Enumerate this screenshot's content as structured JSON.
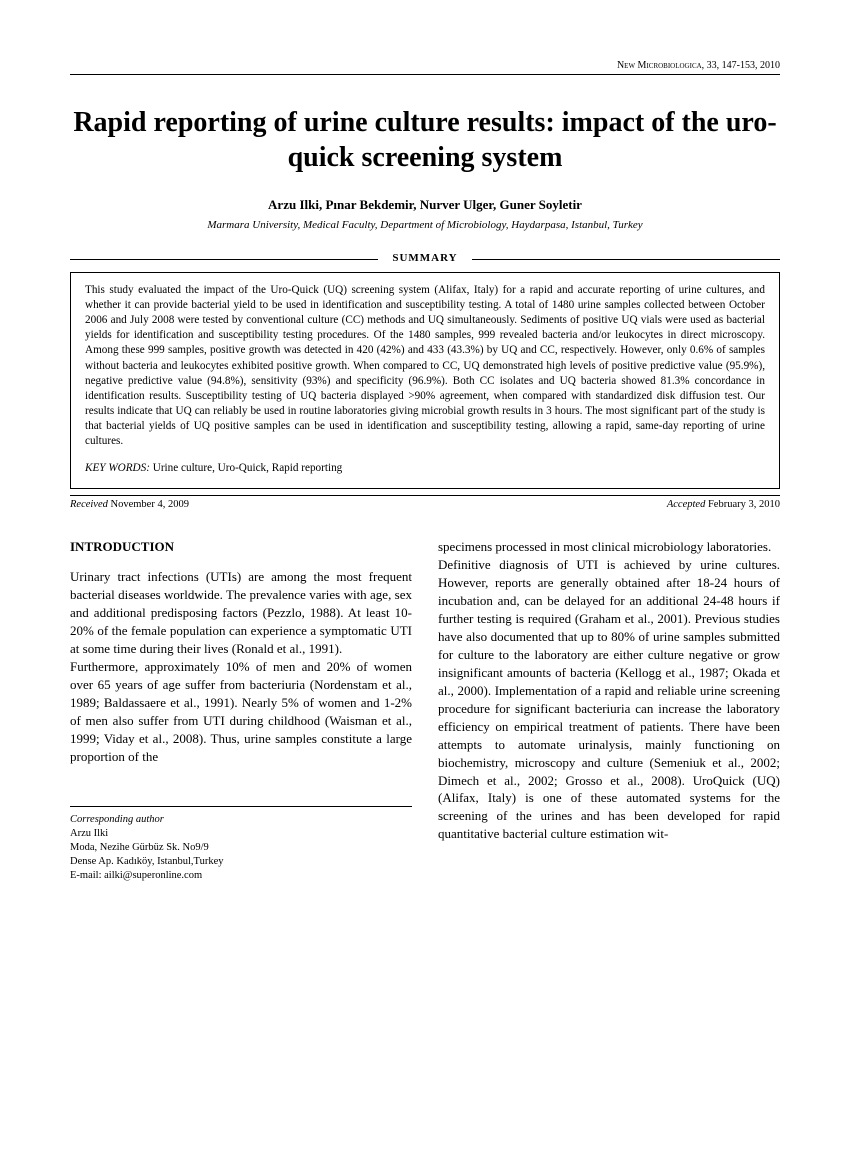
{
  "journal_header": "New Microbiologica, 33, 147-153, 2010",
  "title": "Rapid reporting of urine culture results: impact of the uro-quick screening system",
  "authors": "Arzu Ilki, Pınar Bekdemir, Nurver Ulger, Guner Soyletir",
  "affiliation": "Marmara University, Medical Faculty, Department of Microbiology, Haydarpasa, Istanbul, Turkey",
  "summary_label": "SUMMARY",
  "summary_text": "This study evaluated the impact of the Uro-Quick (UQ) screening system (Alifax, Italy) for a rapid and accurate reporting of urine cultures, and whether it can provide bacterial yield to be used in identification and susceptibility testing. A total of 1480 urine samples collected between October 2006 and July 2008 were tested by conventional culture (CC) methods and UQ simultaneously. Sediments of positive UQ vials were used as bacterial yields for identification and susceptibility testing procedures. Of the 1480 samples, 999 revealed bacteria and/or leukocytes in direct microscopy. Among these 999 samples, positive growth was detected in 420 (42%) and 433 (43.3%) by UQ and CC, respectively. However, only 0.6% of samples without bacteria and leukocytes exhibited positive growth. When compared to CC, UQ demonstrated high levels of positive predictive value (95.9%), negative predictive value (94.8%), sensitivity (93%) and specificity (96.9%). Both CC isolates and UQ bacteria showed 81.3% concordance in identification results. Susceptibility testing of UQ bacteria displayed >90% agreement, when compared with standardized disk diffusion test. Our results indicate that UQ can reliably be used in routine laboratories giving microbial growth results in 3 hours. The most significant part of the study is that bacterial yields of UQ positive samples can be used in identification and susceptibility testing, allowing a rapid, same-day reporting of urine cultures.",
  "keywords_label": "KEY WORDS:",
  "keywords_value": " Urine culture, Uro-Quick, Rapid reporting",
  "received_label": "Received",
  "received_value": " November 4, 2009",
  "accepted_label": "Accepted",
  "accepted_value": " February 3, 2010",
  "introduction_heading": "INTRODUCTION",
  "col1_p1": "Urinary tract infections (UTIs) are among the most frequent bacterial diseases worldwide. The prevalence varies with age, sex and additional predisposing factors (Pezzlo, 1988). At least 10-20% of the female population can experience a symptomatic UTI at some time during their lives (Ronald et al., 1991).",
  "col1_p2": "Furthermore, approximately 10% of men and 20% of women over 65 years of age suffer from bacteriuria (Nordenstam et al., 1989; Baldassaere et al., 1991). Nearly 5% of women and 1-2% of men also suffer from UTI during childhood (Waisman et al., 1999; Viday et al., 2008). Thus, urine samples constitute a large proportion of the",
  "col2_p1": "specimens processed in most clinical microbiology laboratories.",
  "col2_p2": "Definitive diagnosis of UTI is achieved by urine cultures. However, reports are generally obtained after 18-24 hours of incubation and, can be delayed for an additional 24-48 hours if further testing is required (Graham et al., 2001). Previous studies have also documented that up to 80% of urine samples submitted for culture to the laboratory are either culture negative or grow insignificant amounts of bacteria (Kellogg et al., 1987; Okada et al., 2000). Implementation of a rapid and reliable urine screening procedure for significant bacteriuria can increase the laboratory efficiency on empirical treatment of patients. There have been attempts to automate urinalysis, mainly functioning on biochemistry, microscopy and culture (Semeniuk et al., 2002; Dimech et al., 2002; Grosso et al., 2008). UroQuick (UQ) (Alifax, Italy) is one of these automated systems for the screening of the urines and has been developed for rapid quantitative bacterial culture estimation wit-",
  "corresponding_label": "Corresponding author",
  "corresponding_name": "Arzu Ilki",
  "corresponding_addr1": "Moda, Nezihe Gürbüz Sk. No9/9",
  "corresponding_addr2": "Dense Ap. Kadıköy, Istanbul,Turkey",
  "corresponding_email": "E-mail: ailki@superonline.com"
}
